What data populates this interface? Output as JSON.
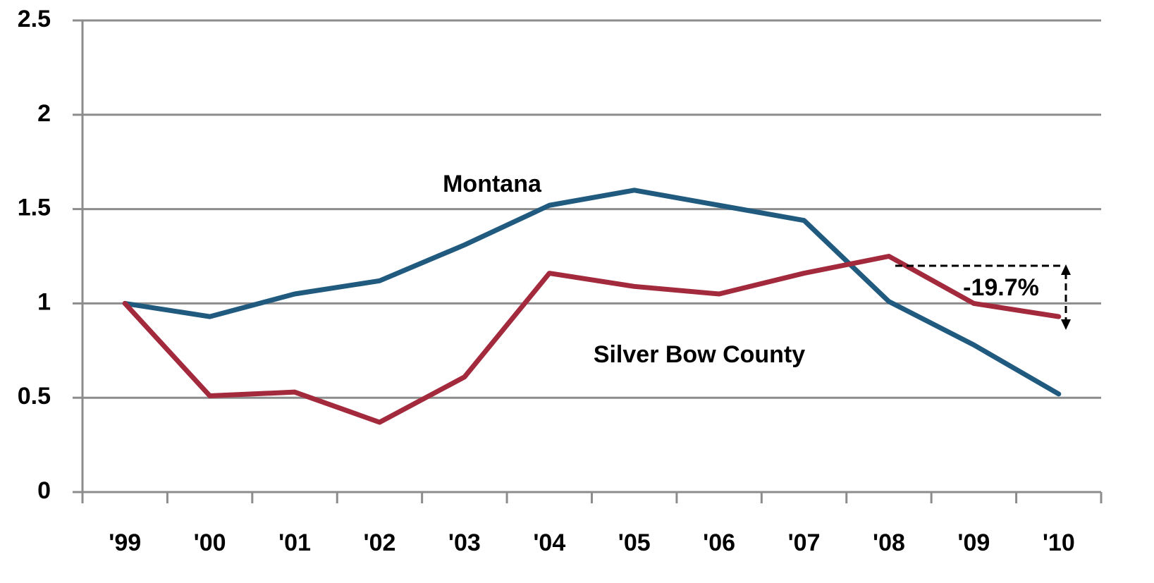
{
  "chart_data": {
    "type": "line",
    "categories": [
      "'99",
      "'00",
      "'01",
      "'02",
      "'03",
      "'04",
      "'05",
      "'06",
      "'07",
      "'08",
      "'09",
      "'10"
    ],
    "series": [
      {
        "name": "Montana",
        "color": "#215a7f",
        "values": [
          1.0,
          0.93,
          1.05,
          1.12,
          1.31,
          1.52,
          1.6,
          1.52,
          1.44,
          1.01,
          0.78,
          0.52
        ]
      },
      {
        "name": "Silver Bow County",
        "color": "#a32a3c",
        "values": [
          1.0,
          0.51,
          0.53,
          0.37,
          0.61,
          1.16,
          1.09,
          1.05,
          1.16,
          1.25,
          1.0,
          0.93
        ]
      }
    ],
    "annotations": [
      "-19.7%"
    ],
    "ylim": [
      0,
      2.5
    ],
    "yticks": [
      0,
      0.5,
      1,
      1.5,
      2,
      2.5
    ],
    "grid": true
  }
}
